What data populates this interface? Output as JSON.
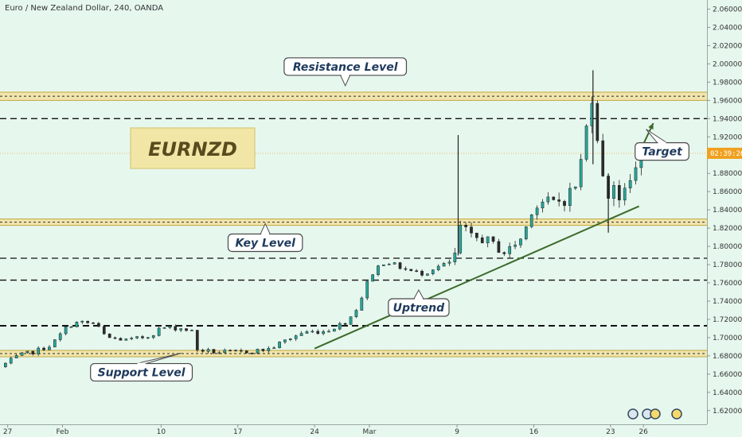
{
  "header": {
    "title": "Euro / New Zealand Dollar, 240, OANDA"
  },
  "symbol_box": {
    "label": "EURNZD"
  },
  "current_price_tag": "02:39:26",
  "colors": {
    "background": "#e6f7ee",
    "up": "#26a69a",
    "down": "#2b2b2b",
    "band": "#f2e2a0",
    "trendline": "#3c6b2c",
    "callout_text": "#1e3a5c",
    "price_tag": "#f0a020"
  },
  "chart_data": {
    "type": "candlestick",
    "title": "Euro / New Zealand Dollar, 240, OANDA",
    "ylim": [
      1.605,
      2.07
    ],
    "y_ticks": [
      1.62,
      1.64,
      1.66,
      1.68,
      1.7,
      1.72,
      1.74,
      1.76,
      1.78,
      1.8,
      1.82,
      1.84,
      1.86,
      1.88,
      1.9,
      1.92,
      1.94,
      1.96,
      1.98,
      2.0,
      2.02,
      2.04,
      2.06
    ],
    "y_tick_labels": [
      "1.62000",
      "1.64000",
      "1.66000",
      "1.68000",
      "1.70000",
      "1.72000",
      "1.74000",
      "1.76000",
      "1.78000",
      "1.80000",
      "1.82000",
      "1.84000",
      "1.86000",
      "1.88000",
      "1.90000",
      "1.92000",
      "1.94000",
      "1.96000",
      "1.98000",
      "2.00000",
      "2.02000",
      "2.04000",
      "2.06000"
    ],
    "x_ticks": [
      {
        "label": "27",
        "day": -5
      },
      {
        "label": "Feb",
        "day": 0
      },
      {
        "label": "10",
        "day": 9
      },
      {
        "label": "17",
        "day": 16
      },
      {
        "label": "24",
        "day": 23
      },
      {
        "label": "Mar",
        "day": 28
      },
      {
        "label": "9",
        "day": 36
      },
      {
        "label": "16",
        "day": 43
      },
      {
        "label": "23",
        "day": 50
      },
      {
        "label": "26",
        "day": 53
      }
    ],
    "x_range_days": [
      -5.7,
      58.8
    ],
    "grid": false,
    "price_path": [
      [
        -5.7,
        1.668
      ],
      [
        -4.0,
        1.68
      ],
      [
        -2.5,
        1.685
      ],
      [
        -1.0,
        1.692
      ],
      [
        0.5,
        1.713
      ],
      [
        1.5,
        1.717
      ],
      [
        3.0,
        1.715
      ],
      [
        4.0,
        1.7
      ],
      [
        6.0,
        1.697
      ],
      [
        8.0,
        1.702
      ],
      [
        9.0,
        1.711
      ],
      [
        11.0,
        1.71
      ],
      [
        12.0,
        1.706
      ],
      [
        12.2,
        1.687
      ],
      [
        14.0,
        1.684
      ],
      [
        16.0,
        1.684
      ],
      [
        18.0,
        1.686
      ],
      [
        19.0,
        1.688
      ],
      [
        20.0,
        1.695
      ],
      [
        22.0,
        1.706
      ],
      [
        24.0,
        1.707
      ],
      [
        26.0,
        1.718
      ],
      [
        27.0,
        1.735
      ],
      [
        27.8,
        1.76
      ],
      [
        28.5,
        1.775
      ],
      [
        29.5,
        1.784
      ],
      [
        31.0,
        1.776
      ],
      [
        32.0,
        1.772
      ],
      [
        33.0,
        1.77
      ],
      [
        34.0,
        1.777
      ],
      [
        35.5,
        1.782
      ],
      [
        36.0,
        1.795
      ],
      [
        36.4,
        1.83
      ],
      [
        37.0,
        1.81
      ],
      [
        38.5,
        1.808
      ],
      [
        39.5,
        1.8
      ],
      [
        40.5,
        1.792
      ],
      [
        41.0,
        1.8
      ],
      [
        42.0,
        1.81
      ],
      [
        42.8,
        1.84
      ],
      [
        44.0,
        1.85
      ],
      [
        45.0,
        1.848
      ],
      [
        46.0,
        1.854
      ],
      [
        47.0,
        1.87
      ],
      [
        47.8,
        1.93
      ],
      [
        48.3,
        1.965
      ],
      [
        48.7,
        1.932
      ],
      [
        49.2,
        1.885
      ],
      [
        49.6,
        1.835
      ],
      [
        50.0,
        1.88
      ],
      [
        50.6,
        1.86
      ],
      [
        51.0,
        1.85
      ],
      [
        51.5,
        1.86
      ],
      [
        52.0,
        1.878
      ],
      [
        52.4,
        1.888
      ],
      [
        52.8,
        1.902
      ]
    ],
    "spikes": [
      {
        "day": 36.1,
        "low": 1.79,
        "high": 1.922
      },
      {
        "day": 48.4,
        "low": 1.89,
        "high": 1.993
      },
      {
        "day": 49.8,
        "low": 1.815,
        "high": 1.88
      }
    ],
    "levels": [
      {
        "name": "resistance-band",
        "type": "band",
        "y1": 1.96,
        "y2": 1.969
      },
      {
        "name": "key-band",
        "type": "band",
        "y1": 1.823,
        "y2": 1.83
      },
      {
        "name": "support-band",
        "type": "band",
        "y1": 1.679,
        "y2": 1.686
      },
      {
        "name": "dashed-1-94",
        "type": "dashed",
        "y": 1.94
      },
      {
        "name": "dashed-1-787",
        "type": "dashed",
        "y": 1.787
      },
      {
        "name": "dashed-1-763",
        "type": "dashed",
        "y": 1.763
      },
      {
        "name": "dashed-1-713",
        "type": "dashed-bold",
        "y": 1.713
      }
    ],
    "trendline": {
      "from": {
        "day": 23.0,
        "y": 1.688
      },
      "to": {
        "day": 52.6,
        "y": 1.844
      }
    },
    "target_arrow": {
      "from": {
        "day": 52.6,
        "y": 1.902
      },
      "to": {
        "day": 53.9,
        "y": 1.935
      }
    },
    "current_price": 1.902,
    "annotations": [
      {
        "name": "resistance-level",
        "text": "Resistance Level",
        "day": 25.8,
        "y": 1.997
      },
      {
        "name": "key-level",
        "text": "Key Level",
        "day": 18.5,
        "y": 1.804
      },
      {
        "name": "support-level",
        "text": "Support Level",
        "day": 7.2,
        "y": 1.662
      },
      {
        "name": "uptrend",
        "text": "Uptrend",
        "day": 32.5,
        "y": 1.733
      },
      {
        "name": "target",
        "text": "Target",
        "day": 54.7,
        "y": 1.904
      }
    ]
  }
}
